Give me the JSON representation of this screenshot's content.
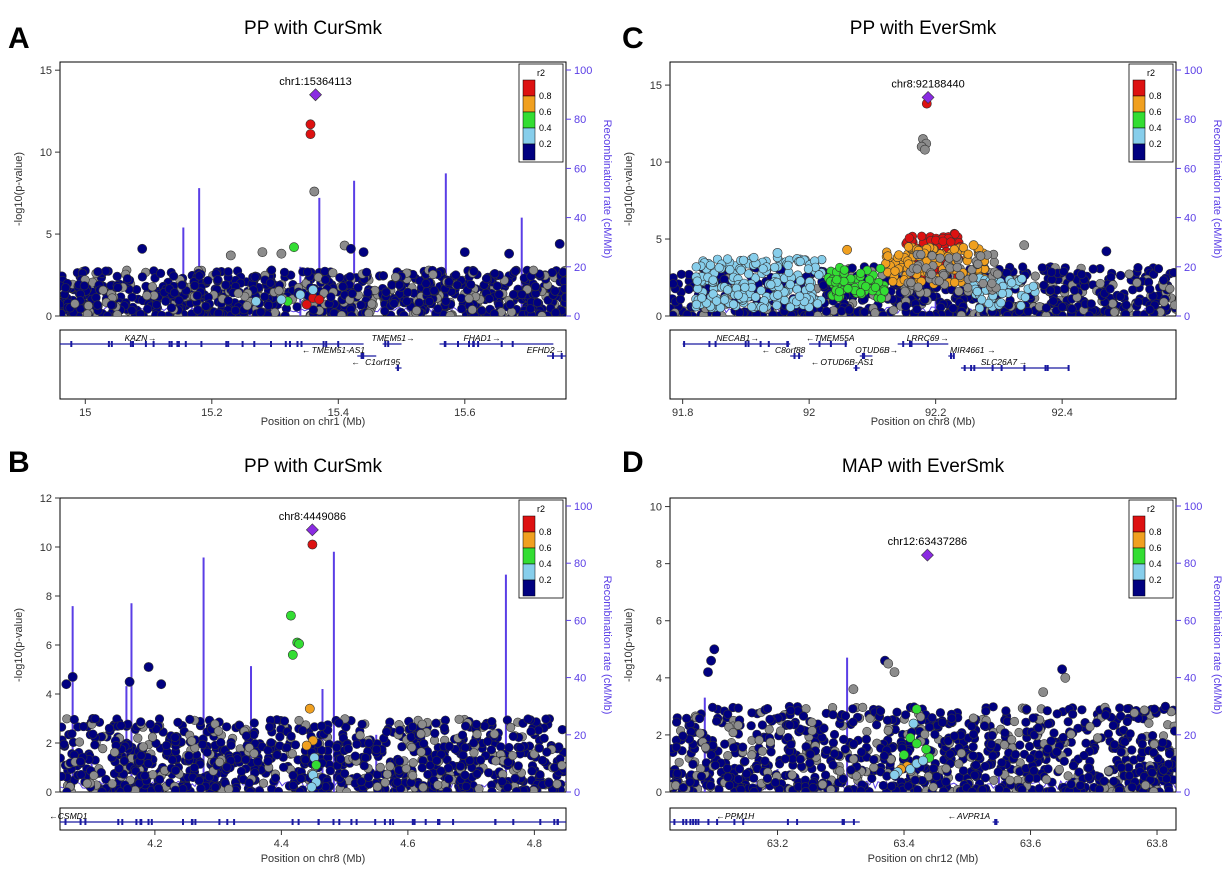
{
  "colors": {
    "r2_bins": [
      "#000080",
      "#87ceeb",
      "#33dd33",
      "#f0a020",
      "#dd1111"
    ],
    "lead": "#8a2be2",
    "grey": "#8c8c8c",
    "recomb": "#5a3ee6"
  },
  "chart_data": [
    {
      "type": "scatter",
      "panel": "A",
      "title": "PP with CurSmk",
      "xlabel": "Position on chr1 (Mb)",
      "ylabel": "-log10(p-value)",
      "y2label": "Recombination rate (cM/Mb)",
      "xlim": [
        14.96,
        15.76
      ],
      "ylim": [
        0,
        15.5
      ],
      "yticks": [
        0,
        5,
        10,
        15
      ],
      "xticks": [
        15,
        15.2,
        15.4,
        15.6
      ],
      "y2ticks": [
        0,
        20,
        40,
        60,
        80,
        100
      ],
      "legend_title": "r2",
      "legend_ticks": [
        "0.8",
        "0.6",
        "0.4",
        "0.2"
      ],
      "legend_position": "top-right",
      "lead": {
        "label": "chr1:15364113",
        "x": 15.364,
        "y": 13.5
      },
      "points": [
        {
          "x": 15.356,
          "y": 11.7,
          "c": 4
        },
        {
          "x": 15.356,
          "y": 11.1,
          "c": 4
        },
        {
          "x": 15.362,
          "y": 7.6,
          "c": 5
        },
        {
          "x": 15.33,
          "y": 4.2,
          "c": 2
        },
        {
          "x": 15.28,
          "y": 3.9,
          "c": 5
        },
        {
          "x": 15.31,
          "y": 3.8,
          "c": 5
        },
        {
          "x": 15.09,
          "y": 4.1,
          "c": 0
        },
        {
          "x": 15.23,
          "y": 3.7,
          "c": 5
        },
        {
          "x": 15.41,
          "y": 4.3,
          "c": 5
        },
        {
          "x": 15.42,
          "y": 4.1,
          "c": 0
        },
        {
          "x": 15.44,
          "y": 3.9,
          "c": 0
        },
        {
          "x": 15.6,
          "y": 3.9,
          "c": 0
        },
        {
          "x": 15.67,
          "y": 3.8,
          "c": 0
        },
        {
          "x": 15.75,
          "y": 4.4,
          "c": 0
        },
        {
          "x": 15.35,
          "y": 0.7,
          "c": 4
        },
        {
          "x": 15.36,
          "y": 1.1,
          "c": 4
        },
        {
          "x": 15.37,
          "y": 1.0,
          "c": 4
        },
        {
          "x": 15.32,
          "y": 0.9,
          "c": 2
        },
        {
          "x": 15.31,
          "y": 1.0,
          "c": 1
        },
        {
          "x": 15.27,
          "y": 0.9,
          "c": 1
        },
        {
          "x": 15.34,
          "y": 1.3,
          "c": 1
        },
        {
          "x": 15.36,
          "y": 1.6,
          "c": 1
        }
      ],
      "background": {
        "max": 2.8,
        "seed": 11,
        "n": 900
      },
      "recomb_spikes": [
        {
          "x": 15.155,
          "y": 36
        },
        {
          "x": 15.18,
          "y": 52
        },
        {
          "x": 15.34,
          "y": 20
        },
        {
          "x": 15.37,
          "y": 48
        },
        {
          "x": 15.425,
          "y": 55
        },
        {
          "x": 15.57,
          "y": 58
        },
        {
          "x": 15.69,
          "y": 40
        },
        {
          "x": 15.05,
          "y": 8
        },
        {
          "x": 15.26,
          "y": 10
        }
      ],
      "genes": [
        {
          "name": "KAZN",
          "start": 14.96,
          "end": 15.44,
          "row": 0,
          "dir": 1,
          "label_at": 15.08
        },
        {
          "name": "TMEM51",
          "start": 15.47,
          "end": 15.5,
          "row": 0,
          "dir": 1,
          "label_at": 15.48
        },
        {
          "name": "FHAD1",
          "start": 15.56,
          "end": 15.74,
          "row": 0,
          "dir": 1,
          "label_at": 15.62
        },
        {
          "name": "TMEM51-AS1",
          "start": 15.43,
          "end": 15.46,
          "row": 1,
          "dir": -1,
          "label_at": 15.4
        },
        {
          "name": "EFHD2",
          "start": 15.73,
          "end": 15.76,
          "row": 1,
          "dir": 1,
          "label_at": 15.72
        },
        {
          "name": "C1orf195",
          "start": 15.49,
          "end": 15.5,
          "row": 2,
          "dir": -1,
          "label_at": 15.47
        }
      ]
    },
    {
      "type": "scatter",
      "panel": "C",
      "title": "PP with EverSmk",
      "xlabel": "Position on chr8 (Mb)",
      "ylabel": "-log10(p-value)",
      "y2label": "Recombination rate (cM/Mb)",
      "xlim": [
        91.78,
        92.58
      ],
      "ylim": [
        0,
        16.5
      ],
      "yticks": [
        0,
        5,
        10,
        15
      ],
      "xticks": [
        91.8,
        92,
        92.2,
        92.4
      ],
      "y2ticks": [
        0,
        20,
        40,
        60,
        80,
        100
      ],
      "legend_title": "r2",
      "legend_ticks": [
        "0.8",
        "0.6",
        "0.4",
        "0.2"
      ],
      "legend_position": "top-right",
      "lead": {
        "label": "chr8:92188440",
        "x": 92.188,
        "y": 14.2
      },
      "points": [
        {
          "x": 92.186,
          "y": 13.8,
          "c": 4
        },
        {
          "x": 92.18,
          "y": 11.5,
          "c": 5
        },
        {
          "x": 92.185,
          "y": 11.2,
          "c": 5
        },
        {
          "x": 92.178,
          "y": 11.0,
          "c": 5
        },
        {
          "x": 92.183,
          "y": 10.8,
          "c": 5
        },
        {
          "x": 92.34,
          "y": 4.6,
          "c": 5
        },
        {
          "x": 92.06,
          "y": 4.3,
          "c": 3
        },
        {
          "x": 92.26,
          "y": 4.6,
          "c": 3
        },
        {
          "x": 92.47,
          "y": 4.2,
          "c": 0
        },
        {
          "x": 91.95,
          "y": 4.1,
          "c": 1
        }
      ],
      "clusters": [
        {
          "x0": 92.15,
          "x1": 92.24,
          "y0": 2.5,
          "y1": 5.4,
          "c": 4,
          "n": 90,
          "seed": 3
        },
        {
          "x0": 92.12,
          "x1": 92.28,
          "y0": 2.0,
          "y1": 4.5,
          "c": 3,
          "n": 110,
          "seed": 4
        },
        {
          "x0": 92.03,
          "x1": 92.12,
          "y0": 1.0,
          "y1": 3.2,
          "c": 2,
          "n": 60,
          "seed": 5
        },
        {
          "x0": 91.82,
          "x1": 92.02,
          "y0": 0.5,
          "y1": 3.8,
          "c": 1,
          "n": 200,
          "seed": 6
        },
        {
          "x0": 92.25,
          "x1": 92.36,
          "y0": 0.5,
          "y1": 2.5,
          "c": 1,
          "n": 40,
          "seed": 7
        },
        {
          "x0": 92.15,
          "x1": 92.3,
          "y0": 1.5,
          "y1": 4.0,
          "c": 5,
          "n": 60,
          "seed": 8
        }
      ],
      "background": {
        "max": 3.2,
        "seed": 21,
        "n": 700
      },
      "recomb_spikes": [
        {
          "x": 92.0,
          "y": 6
        },
        {
          "x": 92.2,
          "y": 8
        },
        {
          "x": 92.4,
          "y": 5
        }
      ],
      "genes": [
        {
          "name": "NECAB1",
          "start": 91.8,
          "end": 91.97,
          "row": 0,
          "dir": 1,
          "label_at": 91.88
        },
        {
          "name": "TMEM55A",
          "start": 92.0,
          "end": 92.06,
          "row": 0,
          "dir": -1,
          "label_at": 92.04
        },
        {
          "name": "LRRC69",
          "start": 92.14,
          "end": 92.22,
          "row": 0,
          "dir": 1,
          "label_at": 92.18
        },
        {
          "name": "C8orf88",
          "start": 91.97,
          "end": 91.99,
          "row": 1,
          "dir": -1,
          "label_at": 91.97
        },
        {
          "name": "OTUD6B",
          "start": 92.08,
          "end": 92.1,
          "row": 1,
          "dir": 1,
          "label_at": 92.1
        },
        {
          "name": "MIR4661",
          "start": 92.22,
          "end": 92.23,
          "row": 1,
          "dir": 1,
          "label_at": 92.25
        },
        {
          "name": "OTUD6B-AS1",
          "start": 92.07,
          "end": 92.08,
          "row": 2,
          "dir": -1,
          "label_at": 92.06
        },
        {
          "name": "SLC26A7",
          "start": 92.24,
          "end": 92.41,
          "row": 2,
          "dir": 1,
          "label_at": 92.3
        }
      ]
    },
    {
      "type": "scatter",
      "panel": "B",
      "title": "PP with CurSmk",
      "xlabel": "Position on chr8 (Mb)",
      "ylabel": "-log10(p-value)",
      "y2label": "Recombination rate (cM/Mb)",
      "xlim": [
        4.05,
        4.85
      ],
      "ylim": [
        0,
        12
      ],
      "yticks": [
        0,
        2,
        4,
        6,
        8,
        10,
        12
      ],
      "xticks": [
        4.2,
        4.4,
        4.6,
        4.8
      ],
      "y2ticks": [
        0,
        20,
        40,
        60,
        80,
        100
      ],
      "legend_title": "r2",
      "legend_ticks": [
        "0.8",
        "0.6",
        "0.4",
        "0.2"
      ],
      "legend_position": "top-right",
      "lead": {
        "label": "chr8:4449086",
        "x": 4.449,
        "y": 10.7
      },
      "points": [
        {
          "x": 4.449,
          "y": 10.1,
          "c": 4
        },
        {
          "x": 4.415,
          "y": 7.2,
          "c": 2
        },
        {
          "x": 4.425,
          "y": 6.1,
          "c": 2
        },
        {
          "x": 4.428,
          "y": 6.05,
          "c": 2
        },
        {
          "x": 4.418,
          "y": 5.6,
          "c": 2
        },
        {
          "x": 4.445,
          "y": 3.4,
          "c": 3
        },
        {
          "x": 4.45,
          "y": 2.1,
          "c": 3
        },
        {
          "x": 4.44,
          "y": 1.9,
          "c": 3
        },
        {
          "x": 4.452,
          "y": 1.4,
          "c": 1
        },
        {
          "x": 4.455,
          "y": 1.1,
          "c": 2
        },
        {
          "x": 4.45,
          "y": 0.7,
          "c": 1
        },
        {
          "x": 4.455,
          "y": 0.4,
          "c": 1
        },
        {
          "x": 4.448,
          "y": 0.2,
          "c": 1
        },
        {
          "x": 4.19,
          "y": 5.1,
          "c": 0
        },
        {
          "x": 4.07,
          "y": 4.7,
          "c": 0
        },
        {
          "x": 4.06,
          "y": 4.4,
          "c": 0
        },
        {
          "x": 4.16,
          "y": 4.5,
          "c": 0
        },
        {
          "x": 4.21,
          "y": 4.4,
          "c": 0
        }
      ],
      "background": {
        "max": 3.0,
        "seed": 31,
        "n": 1000
      },
      "recomb_spikes": [
        {
          "x": 4.07,
          "y": 65
        },
        {
          "x": 4.155,
          "y": 37
        },
        {
          "x": 4.163,
          "y": 66
        },
        {
          "x": 4.277,
          "y": 82
        },
        {
          "x": 4.352,
          "y": 44
        },
        {
          "x": 4.465,
          "y": 36
        },
        {
          "x": 4.483,
          "y": 84
        },
        {
          "x": 4.755,
          "y": 76
        },
        {
          "x": 4.55,
          "y": 20
        },
        {
          "x": 4.1,
          "y": 12
        },
        {
          "x": 4.68,
          "y": 10
        }
      ],
      "genes": [
        {
          "name": "CSMD1",
          "start": 4.05,
          "end": 4.85,
          "row": 0,
          "dir": -1,
          "label_at": 4.07
        }
      ]
    },
    {
      "type": "scatter",
      "panel": "D",
      "title": "MAP with EverSmk",
      "xlabel": "Position on chr12 (Mb)",
      "ylabel": "-log10(p-value)",
      "y2label": "Recombination rate (cM/Mb)",
      "xlim": [
        63.03,
        63.83
      ],
      "ylim": [
        0,
        10.3
      ],
      "yticks": [
        0,
        2,
        4,
        6,
        8,
        10
      ],
      "xticks": [
        63.2,
        63.4,
        63.6,
        63.8
      ],
      "y2ticks": [
        0,
        20,
        40,
        60,
        80,
        100
      ],
      "legend_title": "r2",
      "legend_ticks": [
        "0.8",
        "0.6",
        "0.4",
        "0.2"
      ],
      "legend_position": "top-right",
      "lead": {
        "label": "chr12:63437286",
        "x": 63.437,
        "y": 8.3
      },
      "points": [
        {
          "x": 63.42,
          "y": 2.9,
          "c": 2
        },
        {
          "x": 63.415,
          "y": 2.4,
          "c": 1
        },
        {
          "x": 63.41,
          "y": 1.9,
          "c": 2
        },
        {
          "x": 63.42,
          "y": 1.7,
          "c": 2
        },
        {
          "x": 63.435,
          "y": 1.5,
          "c": 2
        },
        {
          "x": 63.44,
          "y": 1.2,
          "c": 2
        },
        {
          "x": 63.4,
          "y": 1.3,
          "c": 2
        },
        {
          "x": 63.405,
          "y": 0.9,
          "c": 3
        },
        {
          "x": 63.395,
          "y": 0.8,
          "c": 3
        },
        {
          "x": 63.39,
          "y": 0.7,
          "c": 1
        },
        {
          "x": 63.385,
          "y": 0.6,
          "c": 1
        },
        {
          "x": 63.41,
          "y": 0.8,
          "c": 1
        },
        {
          "x": 63.42,
          "y": 1.0,
          "c": 1
        },
        {
          "x": 63.43,
          "y": 1.1,
          "c": 1
        },
        {
          "x": 63.1,
          "y": 5.0,
          "c": 0
        },
        {
          "x": 63.095,
          "y": 4.6,
          "c": 0
        },
        {
          "x": 63.09,
          "y": 4.2,
          "c": 0
        },
        {
          "x": 63.37,
          "y": 4.6,
          "c": 0
        },
        {
          "x": 63.375,
          "y": 4.5,
          "c": 5
        },
        {
          "x": 63.385,
          "y": 4.2,
          "c": 5
        },
        {
          "x": 63.65,
          "y": 4.3,
          "c": 0
        },
        {
          "x": 63.655,
          "y": 4.0,
          "c": 5
        },
        {
          "x": 63.62,
          "y": 3.5,
          "c": 5
        },
        {
          "x": 63.32,
          "y": 3.6,
          "c": 5
        }
      ],
      "background": {
        "max": 3.0,
        "seed": 41,
        "n": 1000
      },
      "recomb_spikes": [
        {
          "x": 63.085,
          "y": 33
        },
        {
          "x": 63.31,
          "y": 47
        },
        {
          "x": 63.2,
          "y": 8
        },
        {
          "x": 63.55,
          "y": 6
        }
      ],
      "genes": [
        {
          "name": "PPM1H",
          "start": 63.03,
          "end": 63.33,
          "row": 0,
          "dir": -1,
          "label_at": 63.14
        },
        {
          "name": "AVPR1A",
          "start": 63.54,
          "end": 63.55,
          "row": 0,
          "dir": -1,
          "label_at": 63.51
        }
      ]
    }
  ]
}
